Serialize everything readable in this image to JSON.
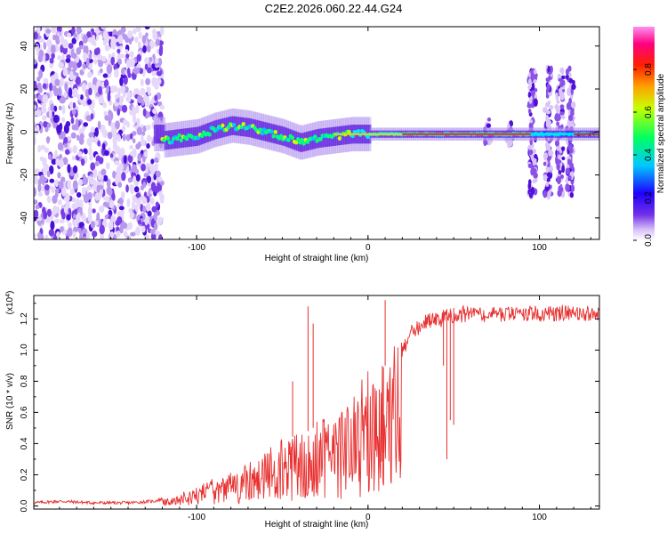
{
  "title": "C2E2.2026.060.22.44.G24",
  "chart_data": [
    {
      "type": "heatmap",
      "xlabel": "Height of straight line (km)",
      "ylabel": "Frequency (Hz)",
      "xlim": [
        -195,
        135
      ],
      "ylim": [
        -50,
        49
      ],
      "xticks": [
        -100,
        0,
        100
      ],
      "yticks": [
        40,
        20,
        0,
        -20,
        -40
      ],
      "colorbar": {
        "label": "Normalized spectral amplitude",
        "range": [
          0,
          1
        ],
        "ticks": [
          "0.0",
          "0.2",
          "0.4",
          "0.6",
          "0.8"
        ],
        "colors": [
          "#ffffff",
          "#c8a0f0",
          "#5020e0",
          "#0000ff",
          "#00d8ff",
          "#00ff40",
          "#ffff00",
          "#ff7000",
          "#ff0000",
          "#ff00a0",
          "#ff80e0"
        ]
      },
      "noise_band": {
        "x_start": -195,
        "x_end": -120
      },
      "ridge": [
        {
          "x": -120,
          "f": -4
        },
        {
          "x": -110,
          "f": -3
        },
        {
          "x": -100,
          "f": -2
        },
        {
          "x": -90,
          "f": 1
        },
        {
          "x": -80,
          "f": 3
        },
        {
          "x": -70,
          "f": 2
        },
        {
          "x": -60,
          "f": 0
        },
        {
          "x": -50,
          "f": -2
        },
        {
          "x": -40,
          "f": -5
        },
        {
          "x": -30,
          "f": -3
        },
        {
          "x": -20,
          "f": -2
        },
        {
          "x": -10,
          "f": -1
        },
        {
          "x": 0,
          "f": -1
        },
        {
          "x": 20,
          "f": -1
        },
        {
          "x": 60,
          "f": -1
        },
        {
          "x": 95,
          "f": -1
        },
        {
          "x": 135,
          "f": -1
        }
      ],
      "spikes": [
        70,
        83,
        96,
        105,
        112,
        118
      ]
    },
    {
      "type": "line",
      "xlabel": "Height of straight line (km)",
      "ylabel": "SNR (10 * v/v)",
      "scale_label": "(x10",
      "scale_exp": "4",
      "xlim": [
        -195,
        135
      ],
      "ylim": [
        -0.02,
        1.35
      ],
      "xticks": [
        -100,
        0,
        100
      ],
      "yticks": [
        "0.0",
        "0.2",
        "0.4",
        "0.6",
        "0.8",
        "1.0",
        "1.2"
      ],
      "series": [
        {
          "name": "SNR",
          "color": "#e83030",
          "points": [
            [
              -195,
              0.02
            ],
            [
              -180,
              0.03
            ],
            [
              -160,
              0.02
            ],
            [
              -140,
              0.02
            ],
            [
              -125,
              0.03
            ],
            [
              -115,
              0.06
            ],
            [
              -105,
              0.1
            ],
            [
              -95,
              0.14
            ],
            [
              -85,
              0.2
            ],
            [
              -75,
              0.24
            ],
            [
              -65,
              0.3
            ],
            [
              -55,
              0.38
            ],
            [
              -45,
              0.44
            ],
            [
              -35,
              0.48
            ],
            [
              -25,
              0.55
            ],
            [
              -15,
              0.62
            ],
            [
              -10,
              0.75
            ],
            [
              -5,
              0.8
            ],
            [
              0,
              0.82
            ],
            [
              5,
              0.85
            ],
            [
              10,
              0.9
            ],
            [
              20,
              1.05
            ],
            [
              25,
              1.15
            ],
            [
              30,
              1.2
            ],
            [
              35,
              1.24
            ],
            [
              40,
              1.25
            ],
            [
              50,
              1.27
            ],
            [
              60,
              1.28
            ],
            [
              80,
              1.28
            ],
            [
              100,
              1.28
            ],
            [
              120,
              1.29
            ],
            [
              135,
              1.28
            ]
          ],
          "dips": [
            {
              "x": -35,
              "y": 1.28
            },
            {
              "x": -32,
              "y": 1.17
            },
            {
              "x": -44,
              "y": 0.8
            },
            {
              "x": 10,
              "y": 1.32
            },
            {
              "x": 9,
              "y": 0.34
            },
            {
              "x": 46,
              "y": 0.3
            },
            {
              "x": 48,
              "y": 0.55
            },
            {
              "x": 50,
              "y": 0.52
            },
            {
              "x": 44,
              "y": 0.9
            }
          ]
        }
      ]
    }
  ]
}
